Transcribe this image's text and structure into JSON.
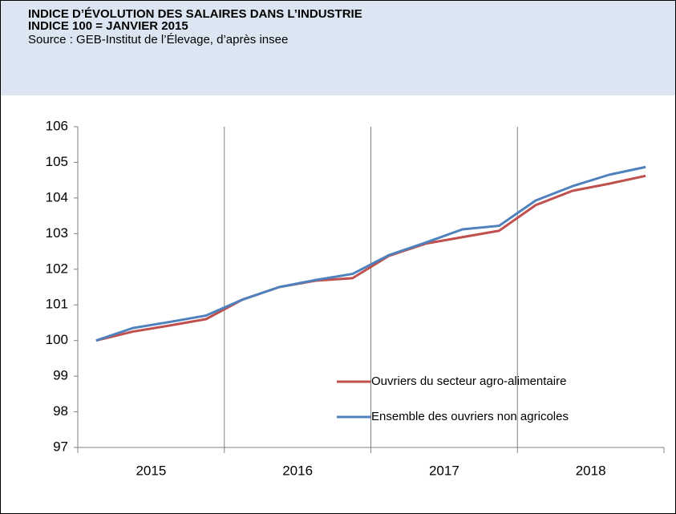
{
  "chart_data": {
    "type": "line",
    "title": "INDICE D’ÉVOLUTION DES SALAIRES DANS L’INDUSTRIE",
    "subtitle": "INDICE 100 = JANVIER 2015",
    "source": "Source : GEB-Institut de l’Élevage, d’après insee",
    "categories": [
      "2015",
      null,
      null,
      null,
      "2016",
      null,
      null,
      null,
      "2017",
      null,
      null,
      null,
      "2018",
      null,
      null,
      null
    ],
    "series": [
      {
        "name": "Ouvriers du secteur agro-alimentaire",
        "color": "#c0504d",
        "values": [
          100,
          100.25,
          100.42,
          100.6,
          101.15,
          101.5,
          101.68,
          101.75,
          102.38,
          102.72,
          102.9,
          103.08,
          103.8,
          104.2,
          104.4,
          104.62
        ]
      },
      {
        "name": "Ensemble des ouvriers non agricoles",
        "color": "#4f81bd",
        "values": [
          100,
          100.35,
          100.52,
          100.7,
          101.15,
          101.5,
          101.7,
          101.87,
          102.4,
          102.75,
          103.12,
          103.22,
          103.93,
          104.33,
          104.65,
          104.87
        ]
      }
    ],
    "ylim": [
      97,
      106
    ],
    "yticks": [
      97,
      98,
      99,
      100,
      101,
      102,
      103,
      104,
      105,
      106
    ],
    "grid": true,
    "legend": "lower right"
  }
}
